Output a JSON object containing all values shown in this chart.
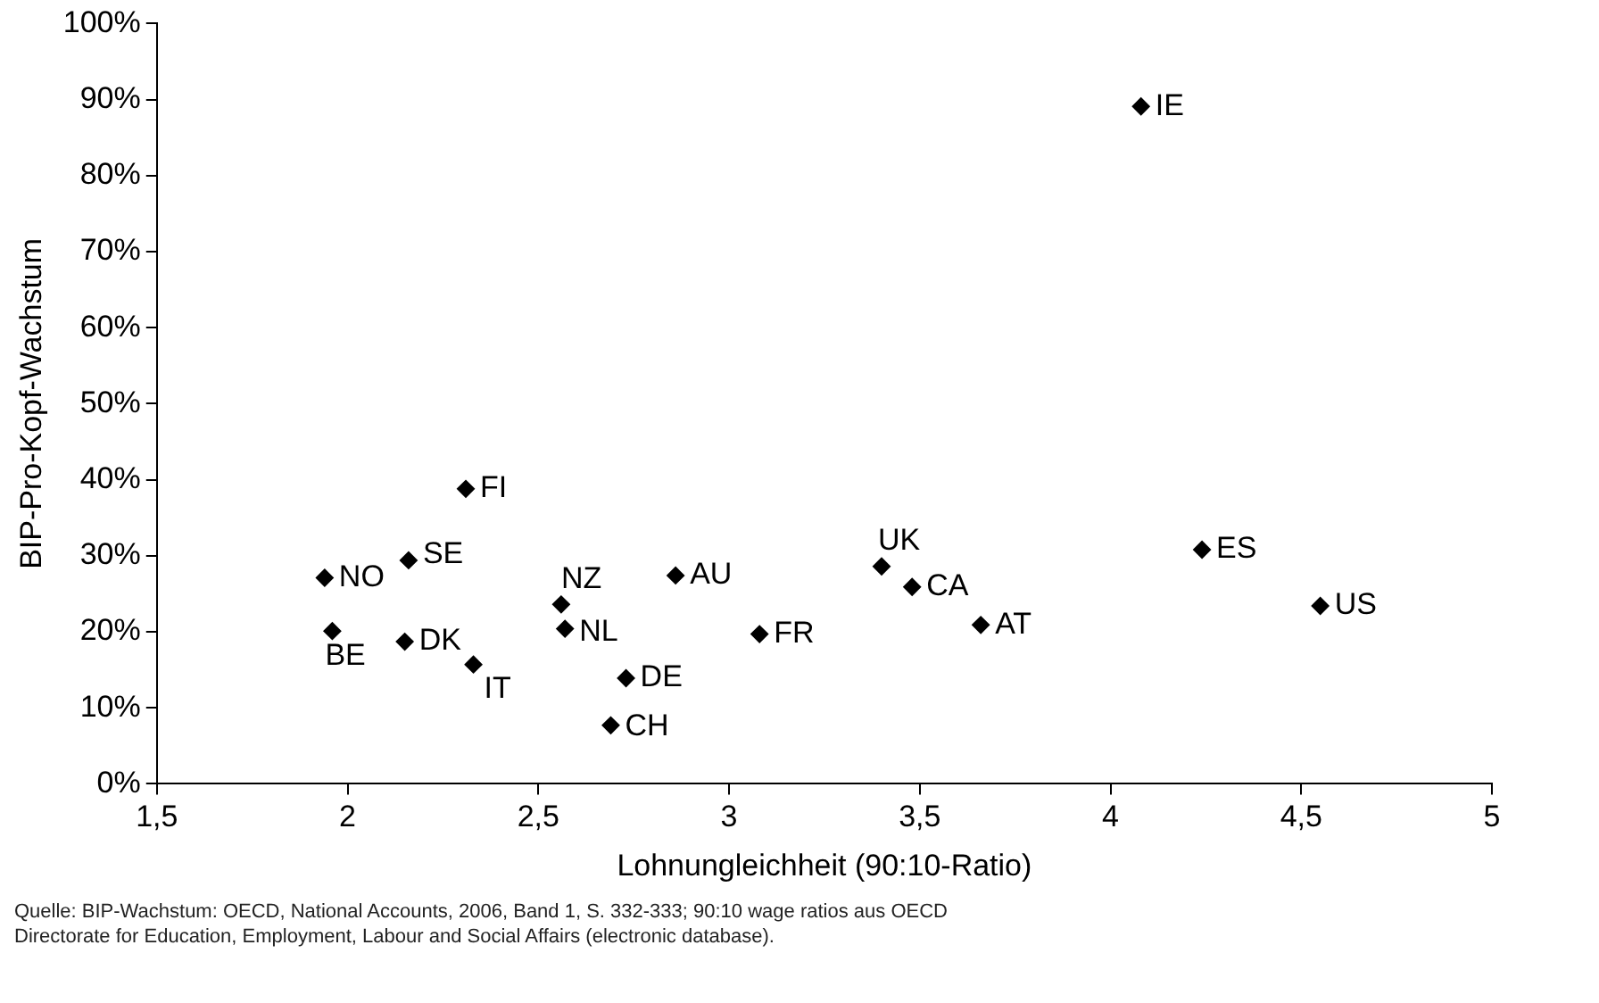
{
  "chart_data": {
    "type": "scatter",
    "xlabel": "Lohnungleichheit (90:10-Ratio)",
    "ylabel": "BIP-Pro-Kopf-Wachstum",
    "x": [
      1.94,
      1.96,
      2.16,
      2.15,
      2.31,
      2.33,
      2.56,
      2.57,
      2.69,
      2.73,
      2.86,
      3.08,
      3.4,
      3.48,
      3.66,
      4.08,
      4.24,
      4.55
    ],
    "series": [
      {
        "color": "#000000",
        "values": [
          27.1,
          20.1,
          29.4,
          18.7,
          38.8,
          15.7,
          23.6,
          20.4,
          7.7,
          13.9,
          27.4,
          19.7,
          28.6,
          25.9,
          20.9,
          89.1,
          30.8,
          23.4
        ]
      }
    ],
    "xlim": [
      1.5,
      5
    ],
    "xticks": [
      {
        "value": 1.5,
        "label": "1,5"
      },
      2,
      {
        "value": 2.5,
        "label": "2,5"
      },
      3,
      {
        "value": 3.5,
        "label": "3,5"
      },
      4,
      {
        "value": 4.5,
        "label": "4,5"
      },
      5
    ],
    "ylim": [
      0,
      100
    ],
    "yticks": [
      {
        "value": 0,
        "label": "0%"
      },
      {
        "value": 10,
        "label": "10%"
      },
      {
        "value": 20,
        "label": "20%"
      },
      {
        "value": 30,
        "label": "30%"
      },
      {
        "value": 40,
        "label": "40%"
      },
      {
        "value": 50,
        "label": "50%"
      },
      {
        "value": 60,
        "label": "60%"
      },
      {
        "value": 70,
        "label": "70%"
      },
      {
        "value": 80,
        "label": "80%"
      },
      {
        "value": 90,
        "label": "90%"
      },
      {
        "value": 100,
        "label": "100%"
      }
    ],
    "grid": false,
    "legend": false,
    "marker": "diamond",
    "annotations": [
      {
        "text": "NO",
        "x": 1.94,
        "y": 27.1
      },
      {
        "text": "BE",
        "x": 1.96,
        "y": 20.1
      },
      {
        "text": "SE",
        "x": 2.16,
        "y": 29.4
      },
      {
        "text": "DK",
        "x": 2.15,
        "y": 18.7
      },
      {
        "text": "FI",
        "x": 2.31,
        "y": 38.8
      },
      {
        "text": "IT",
        "x": 2.33,
        "y": 15.7
      },
      {
        "text": "NZ",
        "x": 2.56,
        "y": 23.6
      },
      {
        "text": "NL",
        "x": 2.57,
        "y": 20.4
      },
      {
        "text": "CH",
        "x": 2.69,
        "y": 7.7
      },
      {
        "text": "DE",
        "x": 2.73,
        "y": 13.9
      },
      {
        "text": "AU",
        "x": 2.86,
        "y": 27.4
      },
      {
        "text": "FR",
        "x": 3.08,
        "y": 19.7
      },
      {
        "text": "UK",
        "x": 3.4,
        "y": 28.6
      },
      {
        "text": "CA",
        "x": 3.48,
        "y": 25.9
      },
      {
        "text": "AT",
        "x": 3.66,
        "y": 20.9
      },
      {
        "text": "IE",
        "x": 4.08,
        "y": 89.1
      },
      {
        "text": "ES",
        "x": 4.24,
        "y": 30.8
      },
      {
        "text": "US",
        "x": 4.55,
        "y": 23.4
      },
      "Quelle: BIP-Wachstum: OECD, National Accounts, 2006, Band 1, S. 332-333; 90:10 wage ratios aus OECD Directorate for Education, Employment, Labour and Social Affairs (electronic database)."
    ]
  }
}
